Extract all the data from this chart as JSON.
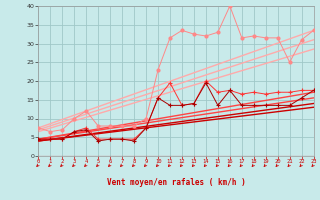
{
  "xlabel": "Vent moyen/en rafales ( km/h )",
  "xlim": [
    0,
    23
  ],
  "ylim": [
    0,
    40
  ],
  "xticks": [
    0,
    1,
    2,
    3,
    4,
    5,
    6,
    7,
    8,
    9,
    10,
    11,
    12,
    13,
    14,
    15,
    16,
    17,
    18,
    19,
    20,
    21,
    22,
    23
  ],
  "yticks": [
    0,
    5,
    10,
    15,
    20,
    25,
    30,
    35,
    40
  ],
  "bg_color": "#c8eaea",
  "grid_color": "#a0c8c8",
  "straight_lines": [
    {
      "x0": 0,
      "y0": 7.5,
      "x1": 23,
      "y1": 33.5,
      "color": "#ffaaaa",
      "lw": 1.0
    },
    {
      "x0": 0,
      "y0": 7.0,
      "x1": 23,
      "y1": 31.0,
      "color": "#ffaaaa",
      "lw": 1.0
    },
    {
      "x0": 0,
      "y0": 6.5,
      "x1": 23,
      "y1": 28.5,
      "color": "#ffaaaa",
      "lw": 1.0
    },
    {
      "x0": 0,
      "y0": 4.5,
      "x1": 23,
      "y1": 17.0,
      "color": "#ff4444",
      "lw": 1.0
    },
    {
      "x0": 0,
      "y0": 4.5,
      "x1": 23,
      "y1": 15.5,
      "color": "#ff4444",
      "lw": 1.0
    },
    {
      "x0": 0,
      "y0": 4.0,
      "x1": 23,
      "y1": 14.0,
      "color": "#cc0000",
      "lw": 1.0
    },
    {
      "x0": 0,
      "y0": 4.0,
      "x1": 23,
      "y1": 13.0,
      "color": "#cc0000",
      "lw": 1.0
    }
  ],
  "noisy_light": [
    7.5,
    6.5,
    7.0,
    10.0,
    12.0,
    8.0,
    8.0,
    8.0,
    8.0,
    10.0,
    23.0,
    31.5,
    33.5,
    32.5,
    32.0,
    33.0,
    40.0,
    31.5,
    32.0,
    31.5,
    31.5,
    25.0,
    31.0,
    33.5
  ],
  "noisy_mid": [
    4.5,
    4.5,
    4.5,
    6.5,
    7.5,
    4.5,
    4.5,
    4.5,
    4.5,
    7.5,
    15.5,
    19.5,
    13.5,
    14.0,
    20.0,
    17.0,
    17.5,
    16.5,
    17.0,
    16.5,
    17.0,
    17.0,
    17.5,
    17.5
  ],
  "noisy_dark": [
    4.5,
    4.5,
    4.5,
    6.5,
    7.0,
    4.0,
    4.5,
    4.5,
    4.0,
    7.5,
    15.5,
    13.5,
    13.5,
    14.0,
    19.5,
    13.5,
    17.5,
    13.5,
    13.5,
    13.5,
    13.5,
    13.5,
    15.5,
    17.5
  ],
  "noisy_light_color": "#ff8888",
  "noisy_mid_color": "#ff3333",
  "noisy_dark_color": "#aa0000"
}
